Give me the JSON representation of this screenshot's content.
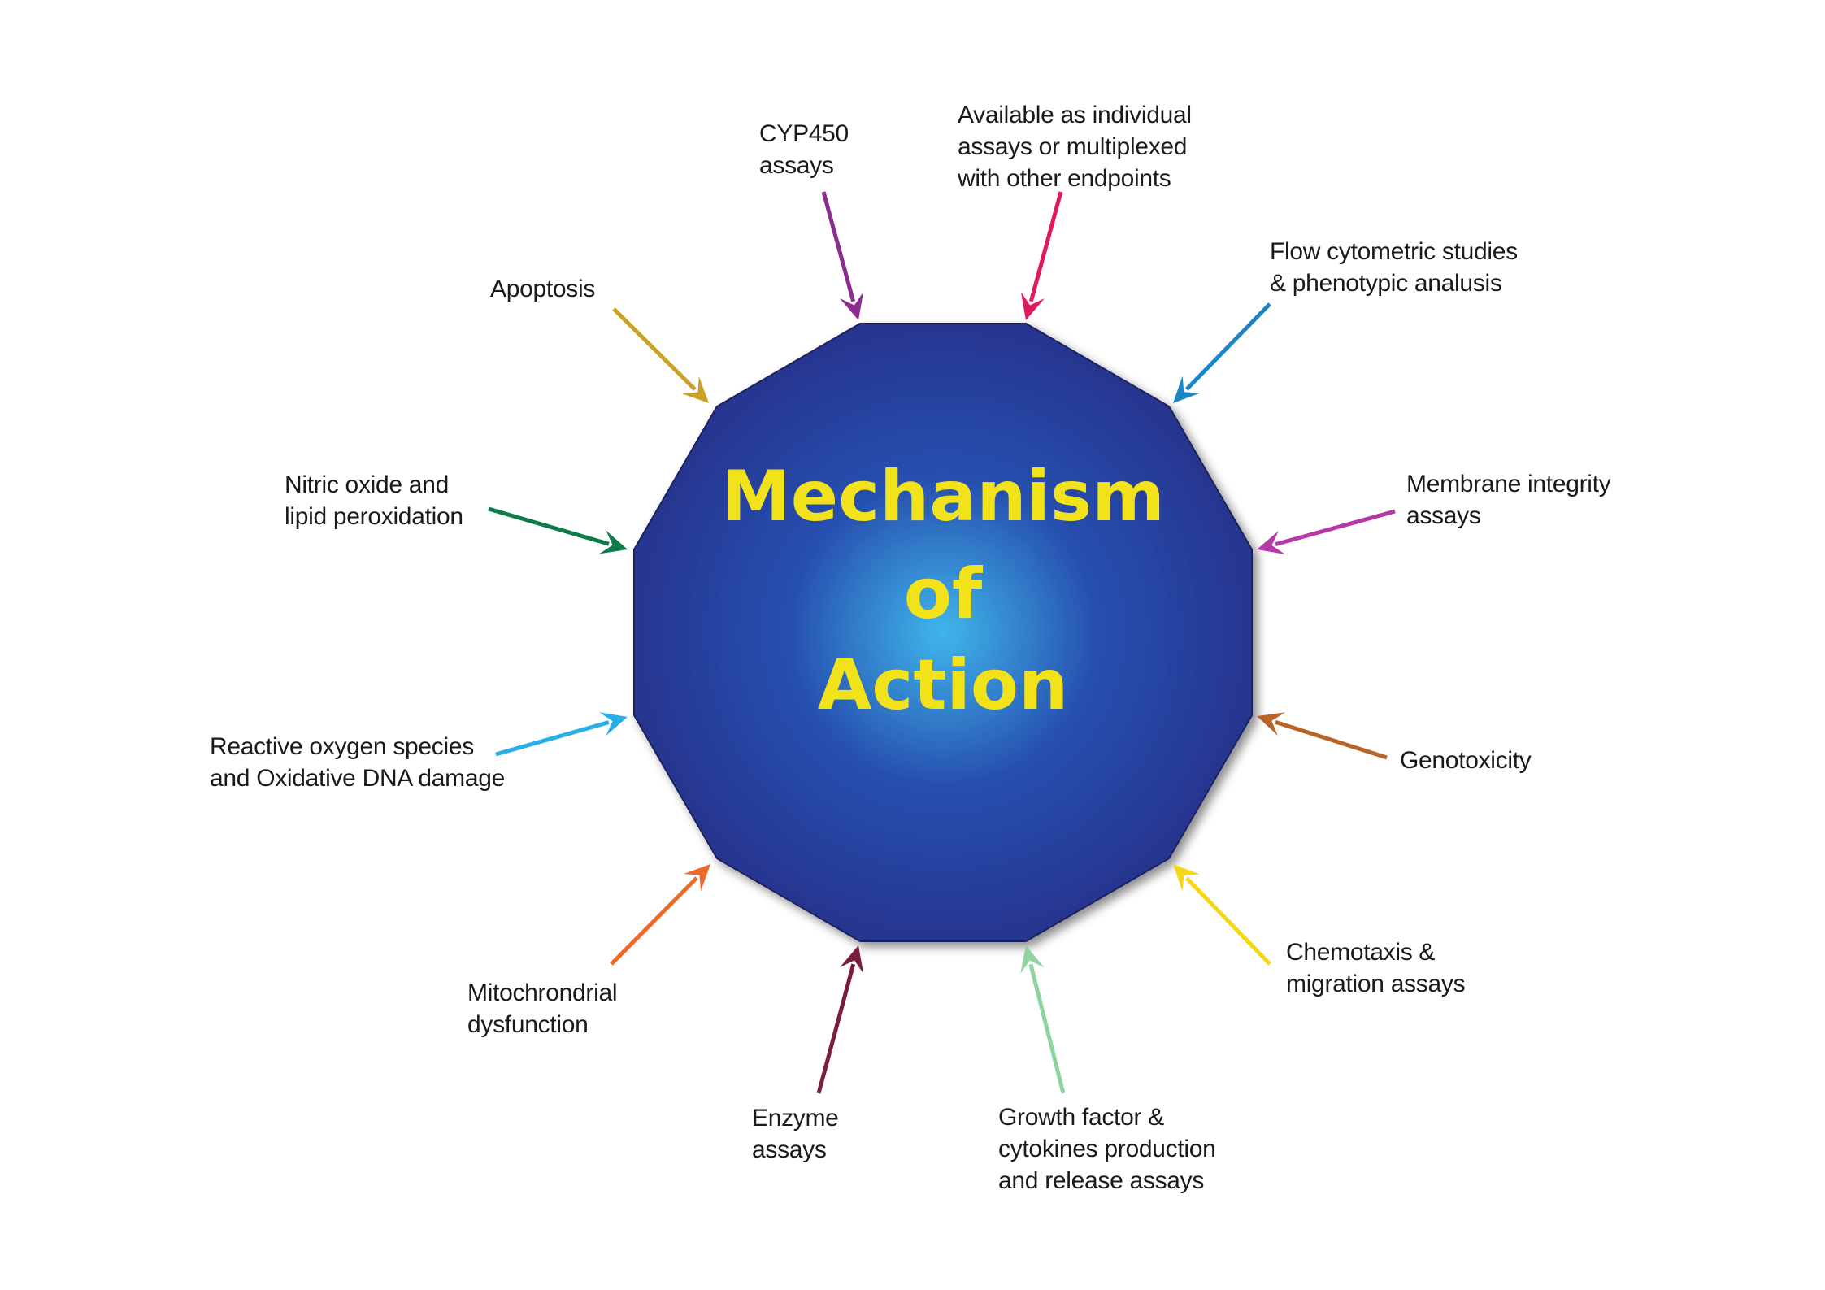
{
  "center": {
    "lines": [
      "Mechanism",
      "of",
      "Action"
    ],
    "text_color": "#f2e21a",
    "gradient_inner": "#3fb6ea",
    "gradient_mid": "#2750b0",
    "gradient_outer": "#263089"
  },
  "items": [
    {
      "id": "apoptosis",
      "lines": [
        "Apoptosis"
      ],
      "color": "#c9a227"
    },
    {
      "id": "cyp450",
      "lines": [
        "CYP450",
        "assays"
      ],
      "color": "#8b2c91"
    },
    {
      "id": "available",
      "lines": [
        "Available as individual",
        "assays or multiplexed",
        "with other endpoints"
      ],
      "color": "#e0185c"
    },
    {
      "id": "flow",
      "lines": [
        "Flow cytometric studies",
        "& phenotypic analusis"
      ],
      "color": "#1a86c8"
    },
    {
      "id": "membrane",
      "lines": [
        "Membrane integrity",
        "assays"
      ],
      "color": "#b53aa8"
    },
    {
      "id": "genotoxicity",
      "lines": [
        "Genotoxicity"
      ],
      "color": "#b8652a"
    },
    {
      "id": "chemotaxis",
      "lines": [
        "Chemotaxis &",
        "migration assays"
      ],
      "color": "#f4d814"
    },
    {
      "id": "growth",
      "lines": [
        "Growth factor &",
        "cytokines production",
        "and release assays"
      ],
      "color": "#8fd3a0"
    },
    {
      "id": "enzyme",
      "lines": [
        "Enzyme",
        "assays"
      ],
      "color": "#7a1d3e"
    },
    {
      "id": "mito",
      "lines": [
        "Mitochrondrial",
        "dysfunction"
      ],
      "color": "#ee6a2a"
    },
    {
      "id": "ros",
      "lines": [
        "Reactive oxygen species",
        "and Oxidative DNA damage"
      ],
      "color": "#27b0e6"
    },
    {
      "id": "nitric",
      "lines": [
        "Nitric oxide and",
        "lipid peroxidation"
      ],
      "color": "#0e7c4a"
    }
  ]
}
